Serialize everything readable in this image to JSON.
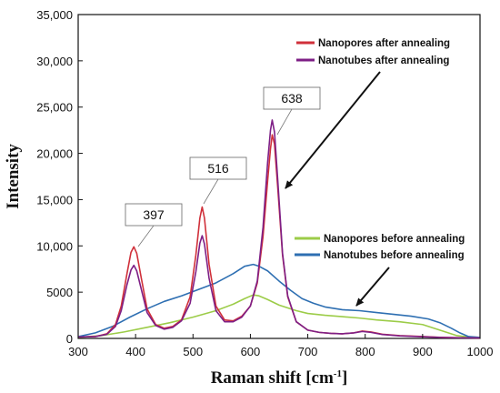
{
  "chart_data": {
    "type": "line",
    "title": "",
    "xlabel": "Raman shift [cm",
    "xlabel_sup": "-1",
    "xlabel_end": "]",
    "ylabel": "Intensity",
    "xlim": [
      300,
      1000
    ],
    "ylim": [
      0,
      35000
    ],
    "xticks": [
      300,
      400,
      500,
      600,
      700,
      800,
      900,
      1000
    ],
    "yticks": [
      0,
      5000,
      10000,
      15000,
      20000,
      25000,
      30000,
      35000
    ],
    "xtick_labels": [
      "300",
      "400",
      "500",
      "600",
      "700",
      "800",
      "900",
      "1000"
    ],
    "ytick_labels": [
      "0",
      "5000",
      "10,000",
      "15,000",
      "20,000",
      "25,000",
      "30,000",
      "35,000"
    ],
    "grid": false,
    "legend_upper": [
      {
        "name": "Nanopores after annealing",
        "color": "#d0303a"
      },
      {
        "name": "Nanotubes after annealing",
        "color": "#7e1f86"
      }
    ],
    "legend_lower": [
      {
        "name": "Nanopores before annealing",
        "color": "#9ccc48"
      },
      {
        "name": "Nanotubes before annealing",
        "color": "#2e6fb2"
      }
    ],
    "annotations": [
      {
        "text": "397",
        "x": 397
      },
      {
        "text": "516",
        "x": 516
      },
      {
        "text": "638",
        "x": 638
      }
    ],
    "series": [
      {
        "name": "Nanopores after annealing",
        "color": "#d0303a",
        "x": [
          300,
          330,
          350,
          365,
          375,
          385,
          392,
          397,
          402,
          410,
          420,
          435,
          450,
          465,
          480,
          495,
          505,
          512,
          516,
          520,
          528,
          540,
          555,
          570,
          585,
          600,
          612,
          622,
          630,
          635,
          638,
          642,
          648,
          656,
          665,
          680,
          700,
          720,
          740,
          760,
          780,
          795,
          810,
          830,
          860,
          900,
          930,
          960,
          1000
        ],
        "y": [
          150,
          200,
          500,
          1500,
          3500,
          7000,
          9300,
          9900,
          9200,
          6500,
          3200,
          1500,
          1100,
          1300,
          2000,
          4500,
          9000,
          13000,
          14200,
          13000,
          8000,
          3500,
          2000,
          1900,
          2400,
          3500,
          6000,
          11000,
          17000,
          20500,
          22000,
          21000,
          16000,
          9000,
          4500,
          1800,
          900,
          650,
          550,
          500,
          600,
          800,
          700,
          450,
          300,
          200,
          120,
          80,
          50
        ]
      },
      {
        "name": "Nanotubes after annealing",
        "color": "#7e1f86",
        "x": [
          300,
          330,
          350,
          365,
          375,
          385,
          392,
          397,
          402,
          410,
          420,
          435,
          450,
          465,
          480,
          495,
          505,
          512,
          516,
          520,
          528,
          540,
          555,
          570,
          585,
          600,
          612,
          622,
          630,
          635,
          638,
          642,
          648,
          656,
          665,
          680,
          700,
          720,
          740,
          760,
          780,
          795,
          810,
          830,
          860,
          900,
          930,
          960,
          1000
        ],
        "y": [
          150,
          200,
          450,
          1300,
          3000,
          5800,
          7400,
          7900,
          7300,
          5300,
          2800,
          1400,
          1000,
          1200,
          1900,
          3800,
          7200,
          10300,
          11100,
          10200,
          6500,
          3000,
          1800,
          1800,
          2300,
          3500,
          6200,
          12000,
          19000,
          22500,
          23600,
          22300,
          16800,
          9200,
          4600,
          1800,
          900,
          650,
          550,
          500,
          600,
          750,
          650,
          420,
          280,
          180,
          110,
          70,
          50
        ]
      },
      {
        "name": "Nanopores before annealing",
        "color": "#9ccc48",
        "x": [
          300,
          340,
          380,
          420,
          460,
          500,
          540,
          570,
          590,
          605,
          615,
          630,
          650,
          680,
          700,
          730,
          760,
          790,
          820,
          860,
          900,
          930,
          960,
          980,
          1000
        ],
        "y": [
          100,
          300,
          700,
          1200,
          1700,
          2300,
          3000,
          3700,
          4300,
          4700,
          4600,
          4200,
          3600,
          3000,
          2700,
          2500,
          2350,
          2200,
          2000,
          1800,
          1500,
          900,
          300,
          150,
          100
        ]
      },
      {
        "name": "Nanotubes before annealing",
        "color": "#2e6fb2",
        "x": [
          300,
          330,
          360,
          390,
          420,
          450,
          480,
          510,
          540,
          570,
          590,
          605,
          615,
          630,
          650,
          670,
          690,
          710,
          730,
          760,
          790,
          820,
          850,
          880,
          910,
          930,
          950,
          965,
          980,
          1000
        ],
        "y": [
          200,
          600,
          1300,
          2300,
          3200,
          4000,
          4600,
          5300,
          6000,
          7000,
          7800,
          8000,
          7800,
          7300,
          6200,
          5200,
          4300,
          3800,
          3400,
          3100,
          3000,
          2800,
          2600,
          2400,
          2100,
          1700,
          1100,
          600,
          200,
          100
        ]
      }
    ]
  }
}
